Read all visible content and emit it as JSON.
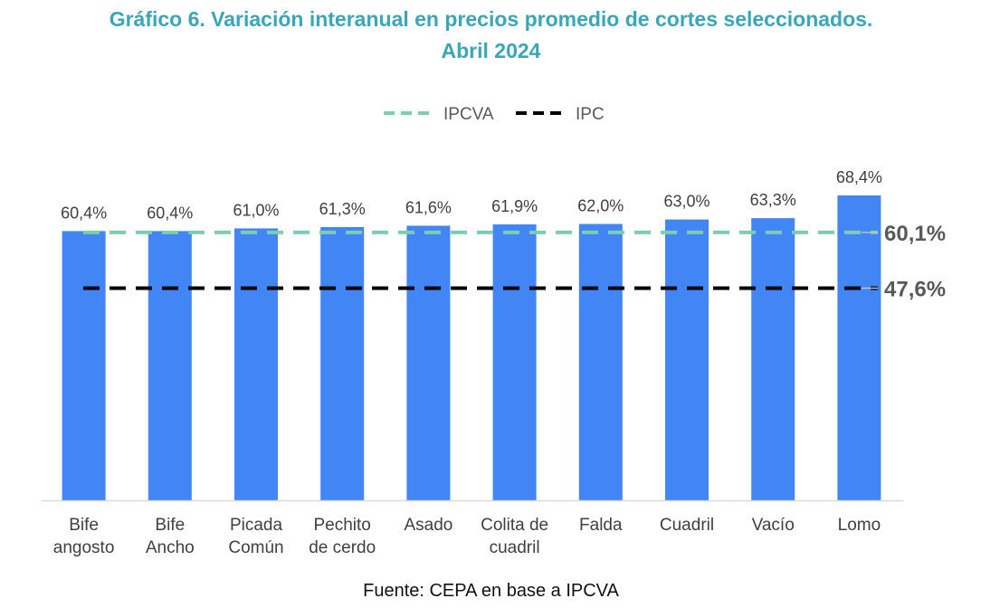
{
  "title_line1": "Gráfico 6. Variación interanual en precios promedio de cortes seleccionados.",
  "title_line2": "Abril 2024",
  "source": "Fuente: CEPA en base a IPCVA",
  "colors": {
    "bar": "#4285f4",
    "ipcva": "#7ecdb0",
    "ipc": "#000000",
    "title": "#3aa6b9"
  },
  "chart_data": {
    "type": "bar",
    "title": "Gráfico 6. Variación interanual en precios promedio de cortes seleccionados. Abril 2024",
    "categories": [
      [
        "Bife",
        "angosto"
      ],
      [
        "Bife",
        "Ancho"
      ],
      [
        "Picada",
        "Común"
      ],
      [
        "Pechito",
        "de cerdo"
      ],
      [
        "Asado"
      ],
      [
        "Colita de",
        "cuadril"
      ],
      [
        "Falda"
      ],
      [
        "Cuadril"
      ],
      [
        "Vacío"
      ],
      [
        "Lomo"
      ]
    ],
    "values": [
      60.4,
      60.4,
      61.0,
      61.3,
      61.6,
      61.9,
      62.0,
      63.0,
      63.3,
      68.4
    ],
    "value_labels": [
      "60,4%",
      "60,4%",
      "61,0%",
      "61,3%",
      "61,6%",
      "61,9%",
      "62,0%",
      "63,0%",
      "63,3%",
      "68,4%"
    ],
    "reference_lines": [
      {
        "name": "IPCVA",
        "value": 60.1,
        "label": "60,1%",
        "style": "dashed"
      },
      {
        "name": "IPC",
        "value": 47.6,
        "label": "47,6%",
        "style": "dashed"
      }
    ],
    "legend": [
      "IPCVA",
      "IPC"
    ],
    "legend_position": "top-center",
    "ylim": [
      0,
      70
    ],
    "grid": false
  }
}
